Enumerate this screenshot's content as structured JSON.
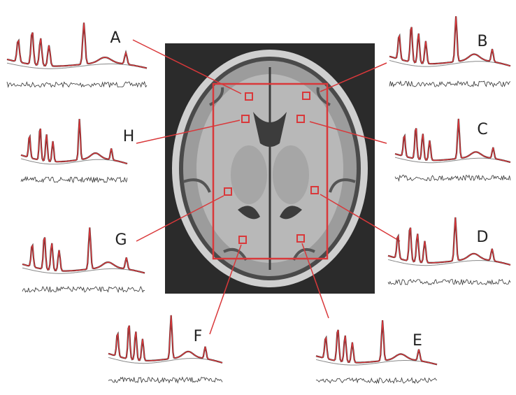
{
  "regions": [
    {
      "label": "A"
    },
    {
      "label": "B"
    },
    {
      "label": "C"
    },
    {
      "label": "D"
    },
    {
      "label": "E"
    },
    {
      "label": "F"
    },
    {
      "label": "G"
    },
    {
      "label": "H"
    }
  ]
}
